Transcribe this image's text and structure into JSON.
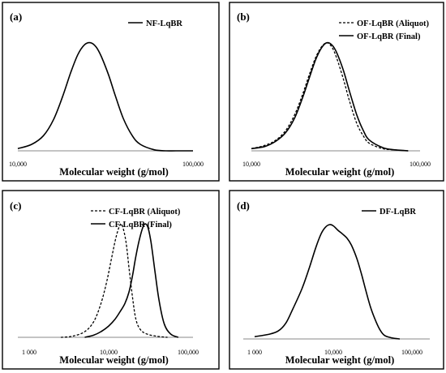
{
  "chart_data": [
    {
      "id": "a",
      "type": "line",
      "panel_label": "(a)",
      "xlabel": "Molecular weight (g/mol)",
      "ylabel": "",
      "x_scale": "log",
      "xlim": [
        10000,
        100000
      ],
      "ylim": [
        0,
        1.05
      ],
      "x_ticks": [
        {
          "value": 10000,
          "label": "10,000"
        },
        {
          "value": 100000,
          "label": "100,000"
        }
      ],
      "legend_position": "top-right",
      "series": [
        {
          "name": "NF-LqBR",
          "style": "solid",
          "x": [
            10000,
            12000,
            14000,
            16000,
            18000,
            20000,
            22000,
            24000,
            26000,
            28000,
            30000,
            33000,
            36000,
            40000,
            45000,
            50000,
            60000,
            70000,
            80000,
            100000
          ],
          "y": [
            0.02,
            0.06,
            0.14,
            0.29,
            0.5,
            0.72,
            0.89,
            0.98,
            1.0,
            0.96,
            0.87,
            0.7,
            0.51,
            0.3,
            0.14,
            0.06,
            0.01,
            0.0,
            0.0,
            0.0
          ]
        }
      ]
    },
    {
      "id": "b",
      "type": "line",
      "panel_label": "(b)",
      "xlabel": "Molecular weight (g/mol)",
      "ylabel": "",
      "x_scale": "log",
      "xlim": [
        10000,
        100000
      ],
      "ylim": [
        0,
        1.05
      ],
      "x_ticks": [
        {
          "value": 10000,
          "label": "10,000"
        },
        {
          "value": 100000,
          "label": "100,000"
        }
      ],
      "legend_position": "top-right",
      "series": [
        {
          "name": "OF-LqBR (Aliquot)",
          "style": "dashed",
          "x": [
            10000,
            12000,
            14000,
            16000,
            18000,
            20000,
            22000,
            24000,
            26000,
            28000,
            30000,
            32000,
            35000,
            38000,
            42000,
            46000,
            50000,
            60000,
            70000,
            85000
          ],
          "y": [
            0.02,
            0.05,
            0.1,
            0.19,
            0.33,
            0.51,
            0.7,
            0.86,
            0.96,
            1.0,
            0.96,
            0.86,
            0.67,
            0.47,
            0.26,
            0.14,
            0.07,
            0.02,
            0.01,
            0.0
          ]
        },
        {
          "name": "OF-LqBR (Final)",
          "style": "solid",
          "x": [
            10000,
            12000,
            14000,
            16000,
            18000,
            20000,
            22000,
            24000,
            26000,
            28000,
            30000,
            32000,
            35000,
            38000,
            42000,
            46000,
            50000,
            60000,
            70000,
            85000
          ],
          "y": [
            0.02,
            0.04,
            0.09,
            0.17,
            0.3,
            0.48,
            0.67,
            0.84,
            0.95,
            1.0,
            0.98,
            0.91,
            0.75,
            0.56,
            0.34,
            0.19,
            0.1,
            0.03,
            0.01,
            0.0
          ]
        }
      ]
    },
    {
      "id": "c",
      "type": "line",
      "panel_label": "(c)",
      "xlabel": "Molecular weight (g/mol)",
      "ylabel": "",
      "x_scale": "log",
      "xlim": [
        1000,
        100000
      ],
      "ylim": [
        0,
        1.05
      ],
      "x_ticks": [
        {
          "value": 1000,
          "label": "1 000"
        },
        {
          "value": 10000,
          "label": "10,000"
        },
        {
          "value": 100000,
          "label": "100,000"
        }
      ],
      "legend_position": "top-left",
      "series": [
        {
          "name": "CF-LqBR (Aliquot)",
          "style": "dashed",
          "x": [
            2500,
            3500,
            5000,
            6500,
            8000,
            9500,
            11000,
            12500,
            14000,
            15000,
            16500,
            18000,
            20000,
            22000,
            25000,
            30000,
            40000,
            55000
          ],
          "y": [
            0.0,
            0.01,
            0.05,
            0.14,
            0.3,
            0.5,
            0.72,
            0.9,
            1.0,
            0.98,
            0.85,
            0.62,
            0.35,
            0.16,
            0.07,
            0.03,
            0.01,
            0.0
          ]
        },
        {
          "name": "CF-LqBR (Final)",
          "style": "solid",
          "x": [
            5000,
            6500,
            8000,
            10000,
            12000,
            14000,
            16000,
            18000,
            20000,
            22000,
            25000,
            28000,
            31000,
            34000,
            38000,
            43000,
            50000,
            60000,
            75000
          ],
          "y": [
            0.0,
            0.02,
            0.05,
            0.1,
            0.16,
            0.23,
            0.3,
            0.4,
            0.55,
            0.72,
            0.9,
            1.0,
            0.98,
            0.85,
            0.6,
            0.33,
            0.12,
            0.03,
            0.0
          ]
        }
      ]
    },
    {
      "id": "d",
      "type": "line",
      "panel_label": "(d)",
      "xlabel": "Molecular weight (g/mol)",
      "ylabel": "",
      "x_scale": "log",
      "xlim": [
        1000,
        100000
      ],
      "ylim": [
        0,
        1.05
      ],
      "x_ticks": [
        {
          "value": 1000,
          "label": "1 000"
        },
        {
          "value": 10000,
          "label": "10,000"
        },
        {
          "value": 100000,
          "label": "100,000"
        }
      ],
      "legend_position": "top-right",
      "series": [
        {
          "name": "DF-LqBR",
          "style": "solid",
          "x": [
            1000,
            1500,
            2000,
            2500,
            3000,
            4000,
            5000,
            6000,
            7000,
            8000,
            9000,
            10000,
            11500,
            13000,
            15000,
            17000,
            20000,
            23000,
            26000,
            30000,
            35000,
            40000,
            45000,
            55000,
            70000
          ],
          "y": [
            0.02,
            0.04,
            0.07,
            0.14,
            0.25,
            0.44,
            0.63,
            0.8,
            0.92,
            0.98,
            1.0,
            0.99,
            0.95,
            0.92,
            0.88,
            0.82,
            0.7,
            0.56,
            0.42,
            0.27,
            0.15,
            0.07,
            0.03,
            0.01,
            0.0
          ]
        }
      ]
    }
  ]
}
